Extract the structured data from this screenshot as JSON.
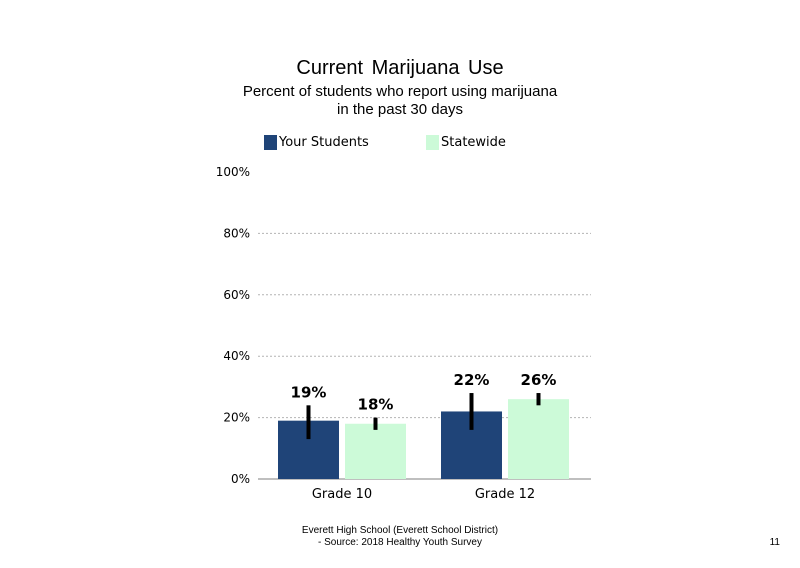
{
  "chart_data": {
    "type": "bar",
    "title": "Current Marijuana Use",
    "subtitle": [
      "Percent of students who report using marijuana",
      "in the past 30 days"
    ],
    "categories": [
      "Grade 10",
      "Grade 12"
    ],
    "series": [
      {
        "name": "Your Students",
        "color": "#1f4478",
        "values": [
          19,
          22
        ],
        "labels": [
          "19%",
          "22%"
        ],
        "error": [
          [
            13,
            24
          ],
          [
            16,
            28
          ]
        ]
      },
      {
        "name": "Statewide",
        "color": "#ccfad8",
        "values": [
          18,
          26
        ],
        "labels": [
          "18%",
          "26%"
        ],
        "error": [
          [
            16,
            20
          ],
          [
            24,
            28
          ]
        ]
      }
    ],
    "ylim": [
      0,
      100
    ],
    "yticks": [
      0,
      20,
      40,
      60,
      80,
      100
    ],
    "ytick_labels": [
      "0%",
      "20%",
      "40%",
      "60%",
      "80%",
      "100%"
    ],
    "grid": true,
    "legend": "top"
  },
  "footer": {
    "line1": "Everett High School (Everett School District)",
    "line2": "- Source: 2018 Healthy Youth Survey"
  },
  "page_number": "11"
}
